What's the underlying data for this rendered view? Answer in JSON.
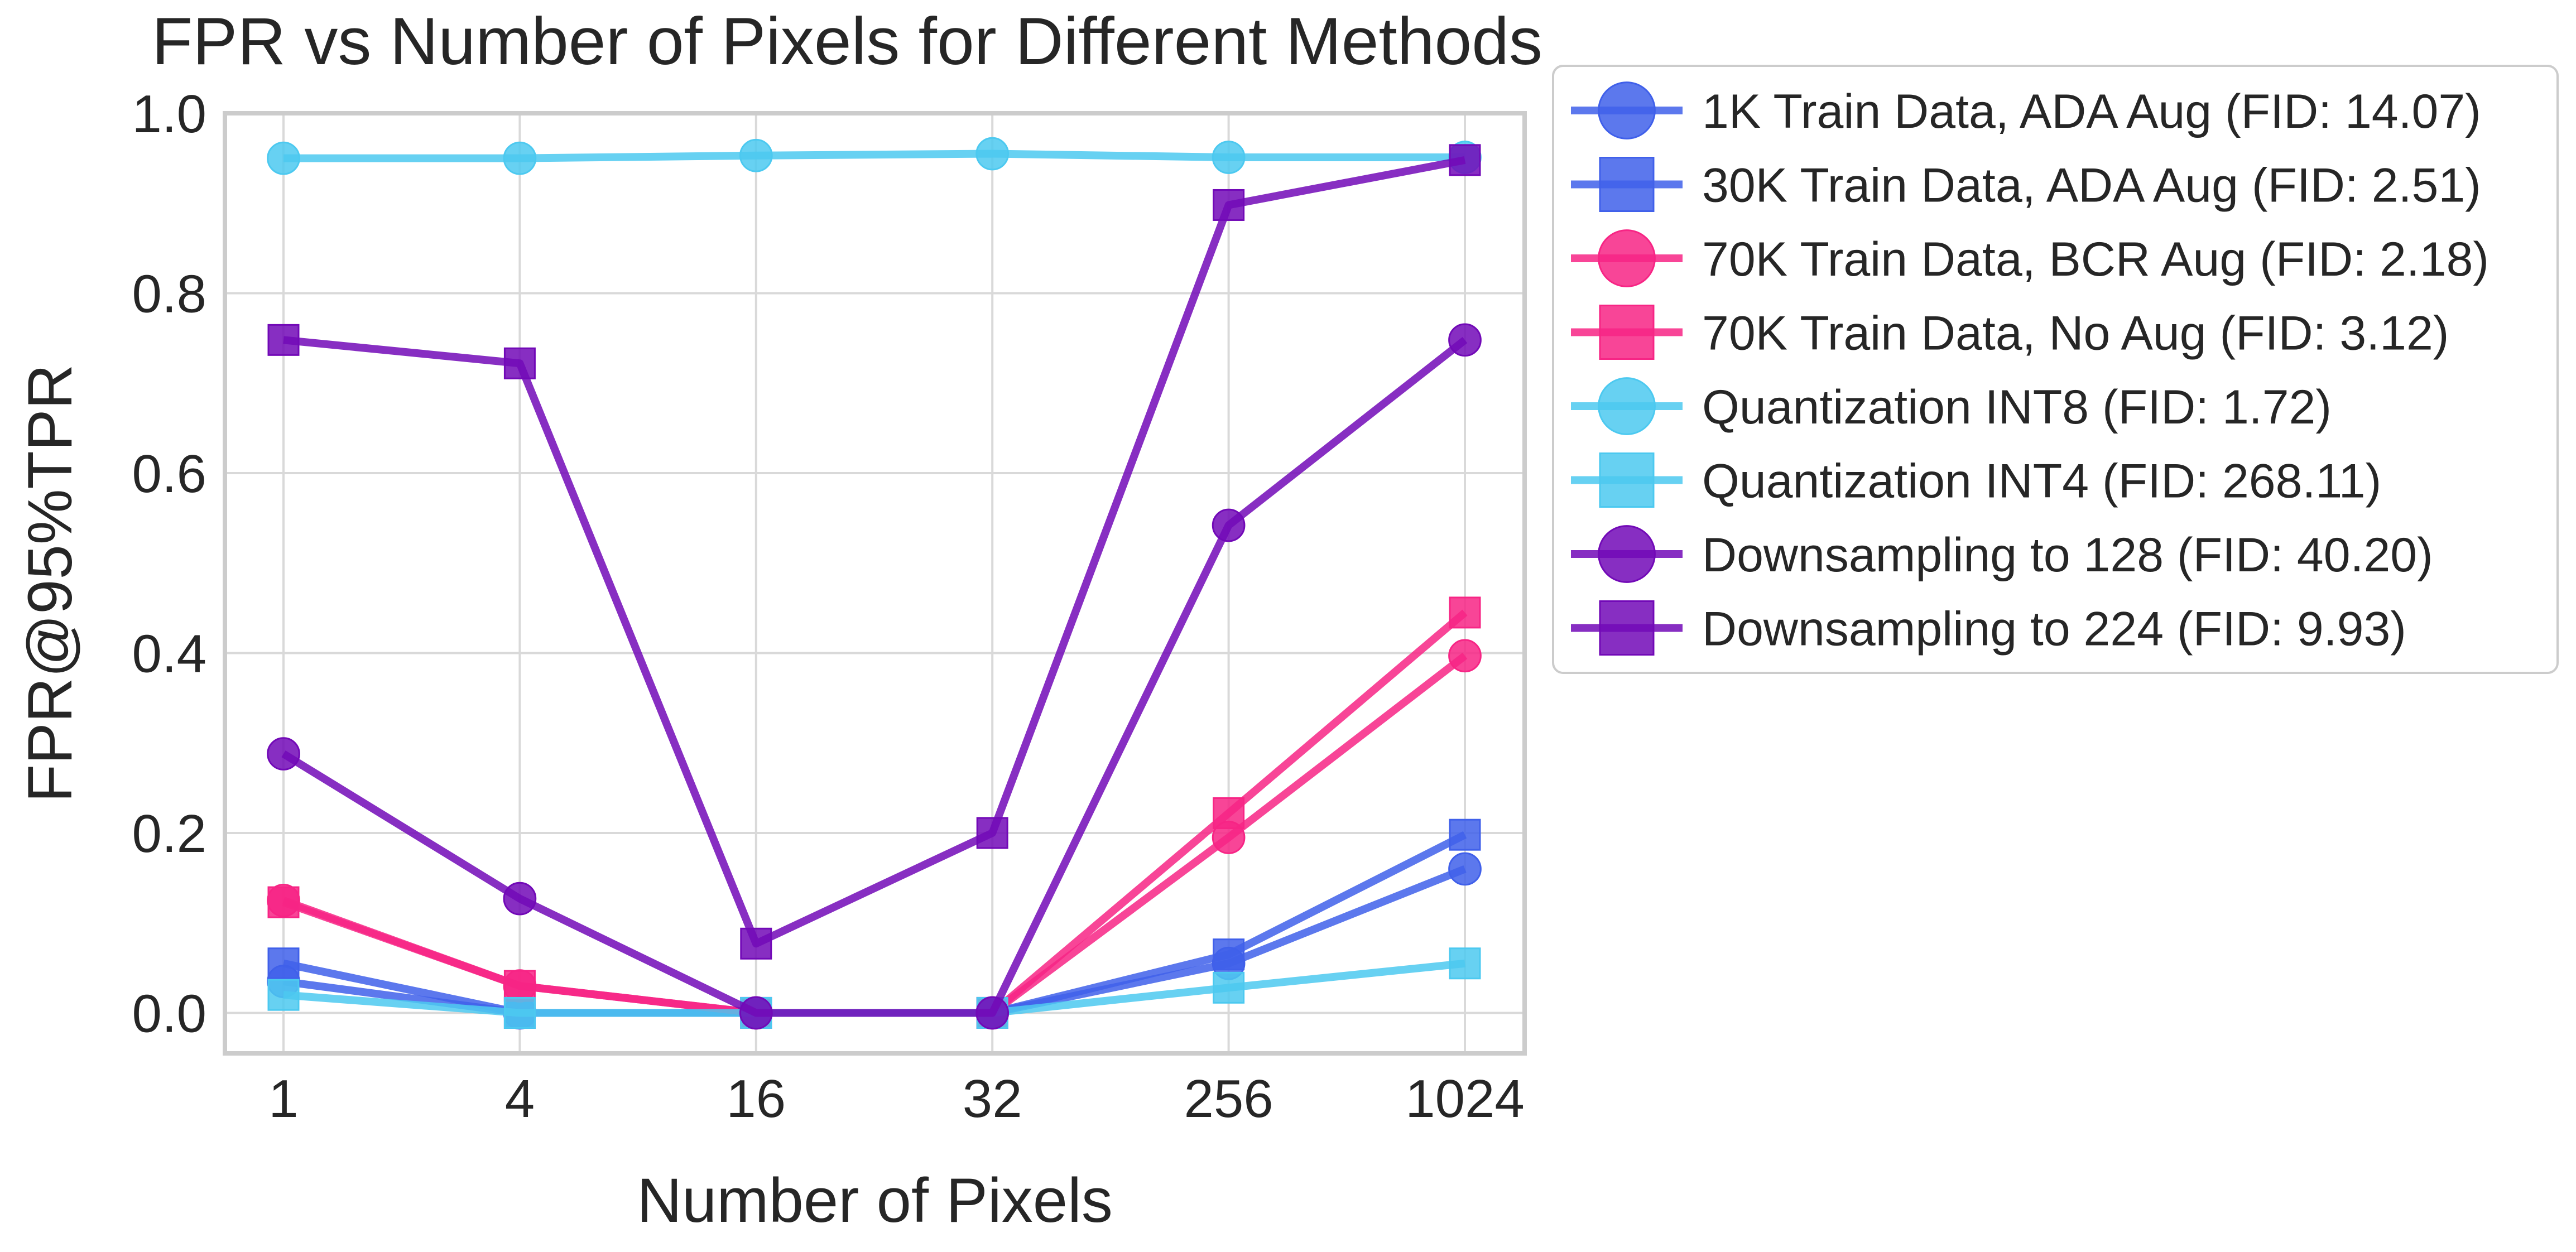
{
  "chart_data": {
    "type": "line",
    "title": "FPR vs Number of Pixels for Different Methods",
    "xlabel": "Number of Pixels",
    "ylabel": "FPR@95%TPR",
    "categories": [
      "1",
      "4",
      "16",
      "32",
      "256",
      "1024"
    ],
    "ylim": [
      -0.045,
      1.0
    ],
    "yticks": [
      "0.0",
      "0.2",
      "0.4",
      "0.6",
      "0.8",
      "1.0"
    ],
    "grid": true,
    "legend_position": "outside-right",
    "series": [
      {
        "name": "1K Train Data, ADA Aug (FID: 14.07)",
        "marker": "circle",
        "color": "#4060ea",
        "values": [
          0.035,
          0.0,
          0.0,
          0.0,
          0.055,
          0.16
        ]
      },
      {
        "name": "30K Train Data, ADA Aug (FID: 2.51)",
        "marker": "square",
        "color": "#4060ea",
        "values": [
          0.055,
          0.0,
          0.0,
          0.0,
          0.065,
          0.198
        ]
      },
      {
        "name": "70K Train Data, BCR Aug (FID: 2.18)",
        "marker": "circle",
        "color": "#f72585",
        "values": [
          0.125,
          0.03,
          0.0,
          0.0,
          0.195,
          0.397
        ]
      },
      {
        "name": "70K Train Data, No Aug (FID: 3.12)",
        "marker": "square",
        "color": "#f72585",
        "values": [
          0.123,
          0.03,
          0.0,
          0.0,
          0.222,
          0.445
        ]
      },
      {
        "name": "Quantization INT8 (FID: 1.72)",
        "marker": "circle",
        "color": "#4cc9f0",
        "values": [
          0.95,
          0.95,
          0.953,
          0.955,
          0.951,
          0.951
        ]
      },
      {
        "name": "Quantization INT4 (FID: 268.11)",
        "marker": "square",
        "color": "#4cc9f0",
        "values": [
          0.02,
          0.0,
          0.0,
          0.0,
          0.028,
          0.055
        ]
      },
      {
        "name": "Downsampling to 128 (FID: 40.20)",
        "marker": "circle",
        "color": "#7209b7",
        "values": [
          0.288,
          0.127,
          0.0,
          0.0,
          0.542,
          0.748
        ]
      },
      {
        "name": "Downsampling to 224 (FID: 9.93)",
        "marker": "square",
        "color": "#7209b7",
        "values": [
          0.748,
          0.722,
          0.077,
          0.2,
          0.898,
          0.948
        ]
      }
    ]
  }
}
